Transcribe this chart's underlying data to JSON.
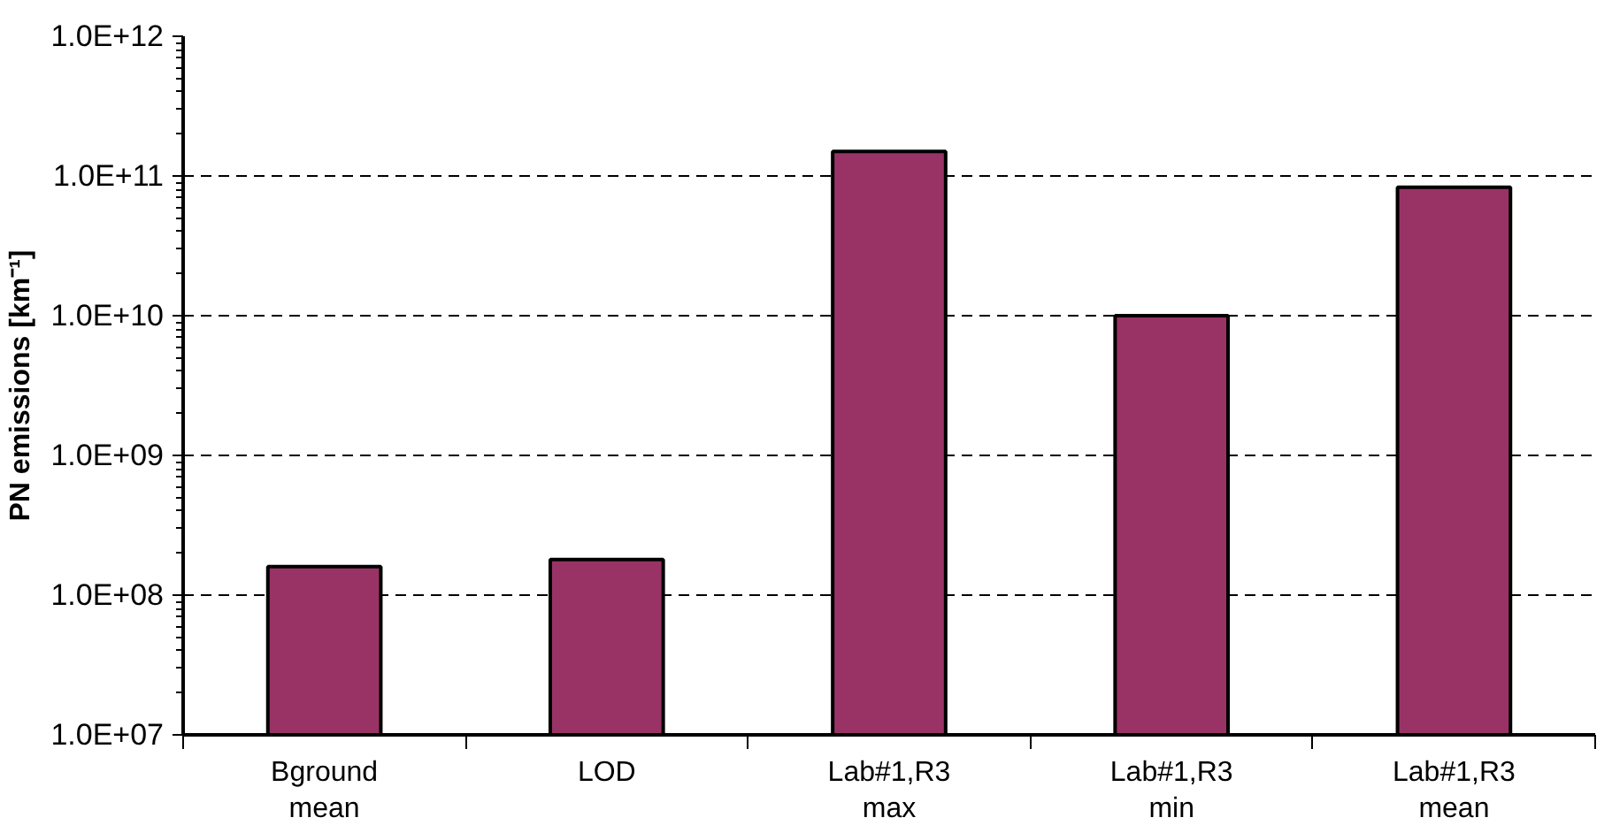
{
  "chart_data": {
    "type": "bar",
    "ylabel": "PN emissions [km⁻¹]",
    "categories": [
      "Bground\nmean",
      "LOD",
      "Lab#1,R3\nmax",
      "Lab#1,R3\nmin",
      "Lab#1,R3\nmean"
    ],
    "values": [
      160000000.0,
      180000000.0,
      150000000000.0,
      10000000000.0,
      83000000000.0
    ],
    "color": "#993366",
    "log": true,
    "ylim": [
      10000000.0,
      1000000000000.0
    ],
    "yticks": [
      {
        "value": 10000000.0,
        "label": "1.0E+07"
      },
      {
        "value": 100000000.0,
        "label": "1.0E+08"
      },
      {
        "value": 1000000000.0,
        "label": "1.0E+09"
      },
      {
        "value": 10000000000.0,
        "label": "1.0E+10"
      },
      {
        "value": 100000000000.0,
        "label": "1.0E+11"
      },
      {
        "value": 1000000000000.0,
        "label": "1.0E+12"
      }
    ],
    "grid": "y"
  }
}
